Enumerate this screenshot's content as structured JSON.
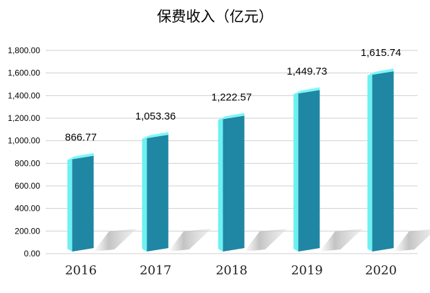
{
  "chart_data": {
    "type": "bar",
    "title": "保费收入（亿元）",
    "categories": [
      "2016",
      "2017",
      "2018",
      "2019",
      "2020"
    ],
    "values": [
      866.77,
      1053.36,
      1222.57,
      1449.73,
      1615.74
    ],
    "value_labels": [
      "866.77",
      "1,053.36",
      "1,222.57",
      "1,449.73",
      "1,615.74"
    ],
    "ylim": [
      0,
      1800
    ],
    "yticks": [
      0,
      200,
      400,
      600,
      800,
      1000,
      1200,
      1400,
      1600,
      1800
    ],
    "ytick_labels": [
      "0.00",
      "200.00",
      "400.00",
      "600.00",
      "800.00",
      "1,000.00",
      "1,200.00",
      "1,400.00",
      "1,600.00",
      "1,800.00"
    ],
    "grid": true,
    "legend": "none",
    "colors": {
      "bar_front": "#1f86a3",
      "bar_side": "#6ff0f2",
      "bar_top": "#7df6f7",
      "shadow": "#bfbfbf",
      "grid": "#cfcfcf"
    }
  }
}
